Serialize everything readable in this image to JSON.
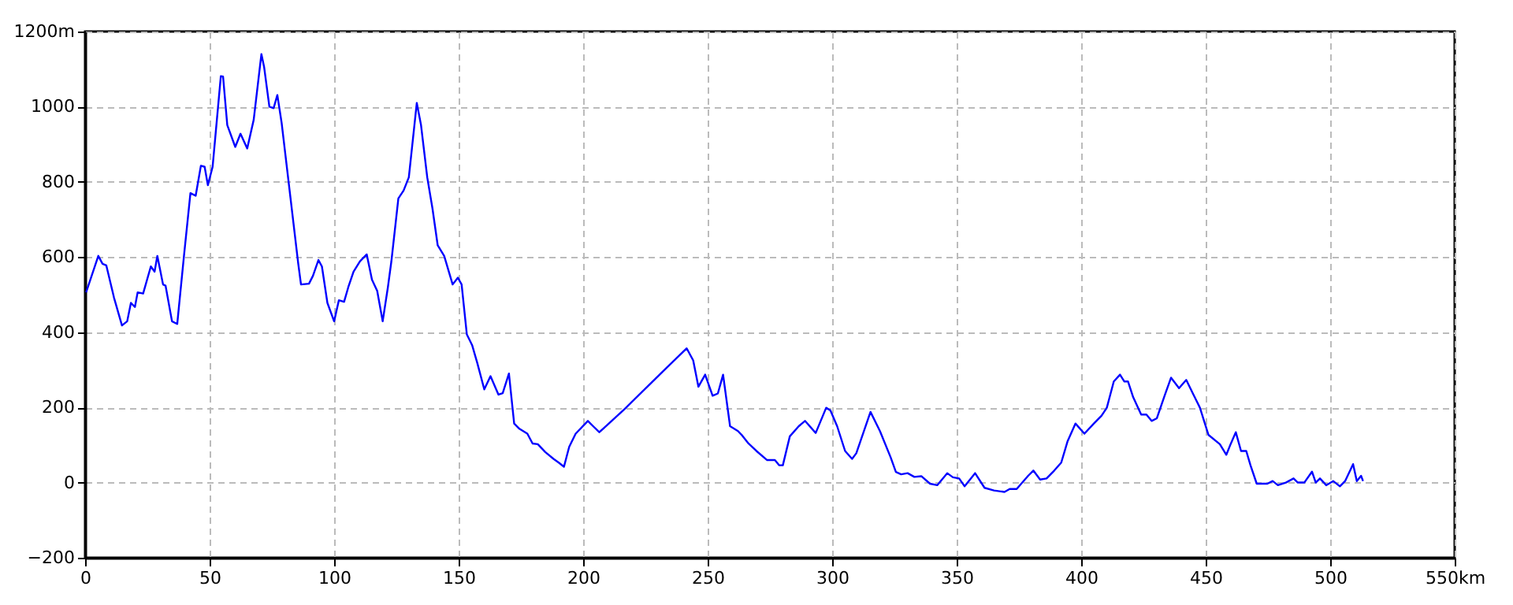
{
  "chart_data": {
    "type": "line",
    "x": [
      0.4,
      5.3,
      7,
      8.5,
      11.6,
      14.8,
      16.9,
      18.4,
      20,
      21.1,
      23.3,
      26.4,
      27.9,
      29,
      31.3,
      32.3,
      34.9,
      37,
      39.7,
      42.3,
      44.4,
      46.5,
      48,
      49.3,
      51.2,
      54.5,
      55.4,
      57.1,
      60.3,
      62.4,
      65.1,
      67.7,
      70.8,
      71.9,
      74,
      75.7,
      77.2,
      78.9,
      82.5,
      85.6,
      86.7,
      89.9,
      91.5,
      93.7,
      95.1,
      97.3,
      100,
      101.9,
      104,
      105.7,
      107.8,
      110.4,
      113.1,
      115.2,
      117.3,
      119.5,
      121.6,
      123,
      125.8,
      127.9,
      130,
      133.2,
      134.9,
      137.4,
      139.5,
      141.6,
      144.2,
      147.6,
      149.7,
      151.2,
      153.3,
      155.4,
      157.5,
      160.3,
      162.8,
      166,
      167.7,
      170.2,
      172.3,
      174.4,
      177.6,
      179.7,
      181.8,
      184.8,
      188.1,
      190.2,
      192.3,
      194.4,
      197,
      201.9,
      204,
      206.5,
      216.7,
      233.6,
      241.6,
      244.2,
      246.3,
      249,
      252,
      254.1,
      256.2,
      259,
      262.2,
      263.9,
      266.4,
      269.6,
      273.8,
      277,
      278.7,
      280.2,
      283,
      286.6,
      289.1,
      293.4,
      297.6,
      299.3,
      302,
      305.2,
      308,
      309.7,
      315.4,
      319.2,
      323.5,
      325.6,
      327.7,
      330.3,
      333,
      335.8,
      339.3,
      342.2,
      346.2,
      348.5,
      351,
      353.2,
      357.4,
      361.2,
      365,
      369.2,
      371.3,
      374.1,
      378.7,
      380.8,
      383.5,
      386.1,
      389.2,
      392,
      394.5,
      397.7,
      401.3,
      405.1,
      408.2,
      410.3,
      413.1,
      415.6,
      417.3,
      418.8,
      420.9,
      424.1,
      426.2,
      428.3,
      430.4,
      433.5,
      436.1,
      439.3,
      442.2,
      445.1,
      447.7,
      451.1,
      455.7,
      458.3,
      460,
      462.1,
      464.2,
      466.3,
      468,
      470.5,
      474.8,
      476.9,
      479,
      482.2,
      485.3,
      487,
      489.6,
      492.7,
      494.2,
      495.9,
      498.4,
      501.2,
      503.9,
      506,
      509.2,
      510.7,
      512.4,
      513.2
    ],
    "series": [
      {
        "color": "#0000ff",
        "values": [
          506,
          603,
          582,
          578,
          492,
          418,
          429,
          478,
          467,
          506,
          503,
          575,
          561,
          603,
          527,
          524,
          429,
          422,
          603,
          770,
          763,
          843,
          840,
          791,
          840,
          1081,
          1080,
          951,
          893,
          928,
          889,
          965,
          1140,
          1105,
          1000,
          996,
          1031,
          958,
          756,
          582,
          527,
          529,
          550,
          592,
          575,
          478,
          429,
          485,
          481,
          520,
          561,
          589,
          607,
          540,
          510,
          429,
          520,
          589,
          756,
          777,
          812,
          1010,
          951,
          812,
          729,
          631,
          603,
          527,
          545,
          527,
          394,
          366,
          318,
          248,
          283,
          234,
          238,
          290,
          157,
          143,
          130,
          104,
          102,
          81,
          63,
          53,
          42,
          95,
          130,
          164,
          150,
          134,
          196,
          306,
          357,
          325,
          255,
          287,
          231,
          237,
          287,
          150,
          137,
          125,
          104,
          84,
          60,
          60,
          46,
          46,
          123,
          150,
          164,
          132,
          199,
          192,
          150,
          84,
          63,
          78,
          188,
          137,
          67,
          28,
          22,
          25,
          15,
          17,
          -3,
          -7,
          25,
          14,
          11,
          -10,
          25,
          -14,
          -21,
          -25,
          -17,
          -17,
          18,
          32,
          8,
          11,
          32,
          53,
          109,
          157,
          130,
          157,
          178,
          199,
          269,
          287,
          269,
          269,
          227,
          181,
          181,
          164,
          171,
          231,
          279,
          251,
          273,
          234,
          199,
          127,
          102,
          74,
          102,
          134,
          84,
          84,
          46,
          -3,
          -3,
          4,
          -7,
          0,
          11,
          0,
          0,
          29,
          0,
          11,
          -7,
          4,
          -10,
          4,
          49,
          4,
          18,
          4
        ]
      }
    ],
    "xlim": [
      0,
      550
    ],
    "xticks": [
      0,
      50,
      100,
      150,
      200,
      250,
      300,
      350,
      400,
      450,
      500,
      {
        "value": 550,
        "label": "550km"
      }
    ],
    "ylim": [
      -200,
      1200
    ],
    "yticks": [
      -200,
      0,
      200,
      400,
      600,
      800,
      1000,
      {
        "value": 1200,
        "label": "1200m"
      }
    ],
    "grid": true,
    "line_style": "solid",
    "marker": "none"
  }
}
